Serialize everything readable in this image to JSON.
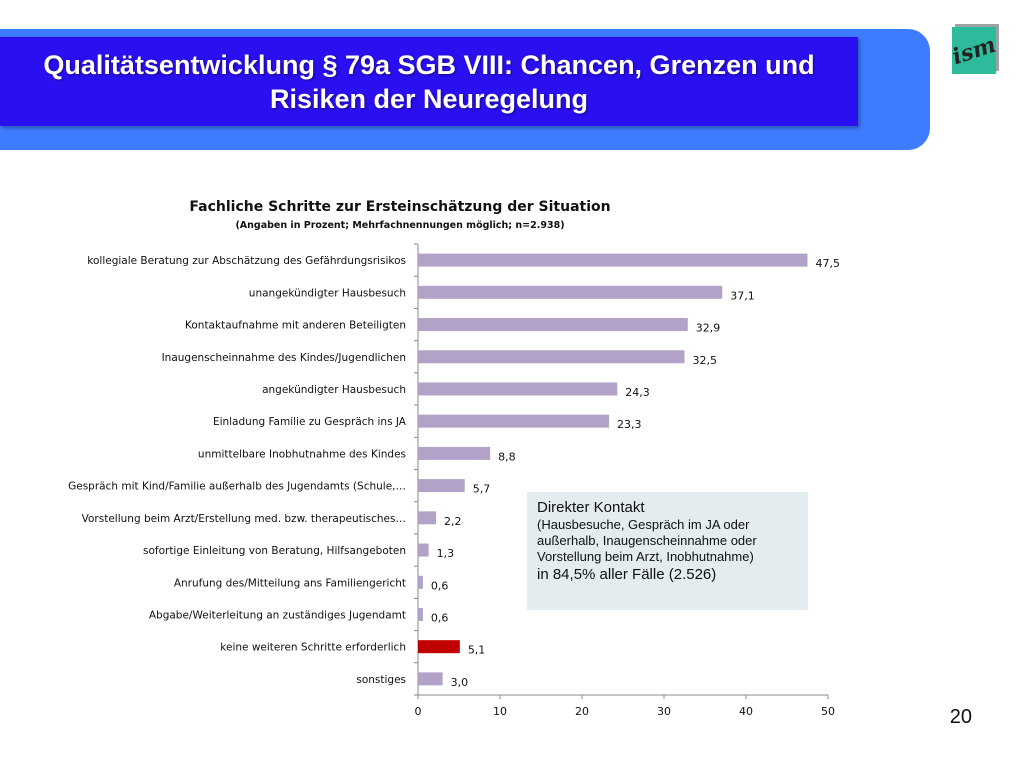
{
  "slide": {
    "title": "Qualitätsentwicklung § 79a SGB VIII: Chancen, Grenzen und Risiken der Neuregelung",
    "page_number": "20",
    "logo_text": "ism"
  },
  "colors": {
    "header_dark": "#2a0ff0",
    "header_light": "#3d7bff",
    "bar_default": "#b3a2c8",
    "bar_highlight": "#c00000",
    "info_box_bg": "#e3ecef"
  },
  "chart_data": {
    "type": "bar",
    "orientation": "horizontal",
    "title": "Fachliche Schritte zur Ersteinschätzung der Situation",
    "subtitle": "(Angaben in Prozent; Mehrfachnennungen  möglich; n=2.938)",
    "categories": [
      "kollegiale Beratung zur Abschätzung des Gefährdungsrisikos",
      "unangekündigter Hausbesuch",
      "Kontaktaufnahme mit anderen Beteiligten",
      "Inaugenscheinnahme des Kindes/Jugendlichen",
      "angekündigter Hausbesuch",
      "Einladung Familie zu Gespräch ins JA",
      "unmittelbare Inobhutnahme des Kindes",
      "Gespräch mit Kind/Familie außerhalb des Jugendamts (Schule,…",
      "Vorstellung beim Arzt/Erstellung med. bzw. therapeutisches…",
      "sofortige Einleitung von Beratung, Hilfsangeboten",
      "Anrufung des/Mitteilung ans Familiengericht",
      "Abgabe/Weiterleitung an zuständiges Jugendamt",
      "keine weiteren Schritte erforderlich",
      "sonstiges"
    ],
    "values": [
      47.5,
      37.1,
      32.9,
      32.5,
      24.3,
      23.3,
      8.8,
      5.7,
      2.2,
      1.3,
      0.6,
      0.6,
      5.1,
      3.0
    ],
    "value_labels": [
      "47,5",
      "37,1",
      "32,9",
      "32,5",
      "24,3",
      "23,3",
      "8,8",
      "5,7",
      "2,2",
      "1,3",
      "0,6",
      "0,6",
      "5,1",
      "3,0"
    ],
    "highlight_index": 12,
    "xlim": [
      0,
      50
    ],
    "x_ticks": [
      "0",
      "10",
      "20",
      "30",
      "40",
      "50"
    ],
    "grid": false
  },
  "info_box": {
    "heading": "Direkter Kontakt",
    "detail": "(Hausbesuche, Gespräch im JA oder außerhalb, Inaugenscheinnahme oder Vorstellung beim Arzt, Inobhutnahme)",
    "summary": "in 84,5% aller Fälle (2.526)"
  }
}
